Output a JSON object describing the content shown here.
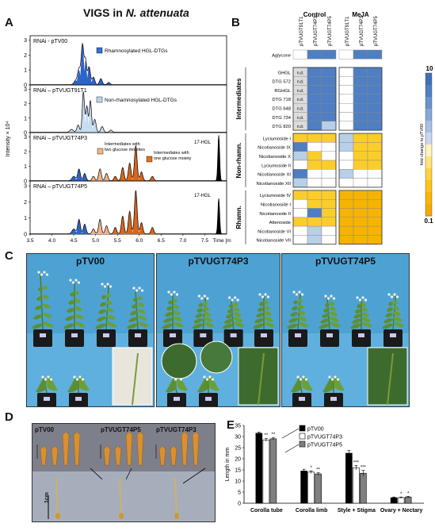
{
  "panels": {
    "A": "A",
    "B": "B",
    "C": "C",
    "D": "D",
    "E": "E"
  },
  "chromatograms": {
    "title_prefix": "VIGS in ",
    "title_species": "N. attenuata",
    "ylabel": "Intensity × 10⁴",
    "xlabel": "Time [min]",
    "x_ticks": [
      "3.5",
      "4.0",
      "4.5",
      "5.0",
      "5.5",
      "6.0",
      "6.5",
      "7.0",
      "7.5"
    ],
    "y_ticks": [
      "3",
      "2",
      "1",
      "0"
    ],
    "traces": [
      {
        "label": "RNAi - pTV00",
        "annotations": [
          {
            "text": "Rhamnosylated HGL-DTGs",
            "color": "#3b6fd4"
          }
        ]
      },
      {
        "label": "RNAi – pTVUGT91T1",
        "annotations": [
          {
            "text": "Non-rhamnosylated HGL-DTGs",
            "color": "#bcd6ee"
          }
        ]
      },
      {
        "label": "RNAi – pTVUGT74P3",
        "annotations": [
          {
            "text": "Intermediates with two glucose moieties",
            "color": "#f3b48a"
          },
          {
            "text": "Intermediates with one glucose moiety",
            "color": "#e0731f"
          },
          {
            "text": "17-HGL",
            "color": "#000000"
          }
        ]
      },
      {
        "label": "RNAi – pTVUGT74P5",
        "annotations": [
          {
            "text": "17-HGL",
            "color": "#000000"
          }
        ]
      }
    ]
  },
  "heatmap": {
    "groups": [
      "Control",
      "MeJA"
    ],
    "columns": [
      "pTVUGT91T1",
      "pTVUGT74P3",
      "pTVUGT74P5"
    ],
    "aglycone_row": {
      "name": "Aglycone",
      "values": [
        "white",
        "blue",
        "blue",
        "white",
        "blue",
        "blue"
      ]
    },
    "sections": [
      {
        "name": "Intermediates",
        "rows": [
          {
            "name": "GHGL",
            "values": [
              "nd",
              "blue",
              "blue",
              "white",
              "blue",
              "blue"
            ]
          },
          {
            "name": "DTG 572",
            "values": [
              "nd",
              "blue",
              "blue",
              "white",
              "blue",
              "blue"
            ]
          },
          {
            "name": "RGHGL",
            "values": [
              "nd",
              "blue",
              "blue",
              "white",
              "blue",
              "blue"
            ]
          },
          {
            "name": "DTG 718",
            "values": [
              "nd",
              "blue",
              "blue",
              "white",
              "blue",
              "blue"
            ]
          },
          {
            "name": "DTG 648",
            "values": [
              "nd",
              "blue",
              "blue",
              "white",
              "blue",
              "blue"
            ]
          },
          {
            "name": "DTG 734",
            "values": [
              "nd",
              "blue",
              "blue",
              "white",
              "blue",
              "blue"
            ]
          },
          {
            "name": "DTG 820",
            "values": [
              "nd",
              "blue",
              "light",
              "white",
              "blue",
              "blue"
            ]
          }
        ]
      },
      {
        "name": "Non-rhamn.",
        "rows": [
          {
            "name": "Lyciumoside I",
            "values": [
              "yellow",
              "yellow",
              "yellow",
              "light",
              "yellow",
              "yellow"
            ]
          },
          {
            "name": "Nicotianoside IX",
            "values": [
              "blue",
              "white",
              "white",
              "light",
              "yellow",
              "yellow"
            ]
          },
          {
            "name": "Nicotianoside X",
            "values": [
              "light",
              "yellow",
              "white",
              "white",
              "yellow",
              "yellow"
            ]
          },
          {
            "name": "Lyciumoside II",
            "values": [
              "white",
              "yellow",
              "yellow",
              "white",
              "yellow",
              "yellow"
            ]
          },
          {
            "name": "Nicotianoside XI",
            "values": [
              "blue",
              "white",
              "white",
              "light",
              "white",
              "white"
            ]
          },
          {
            "name": "Nicotianoside XII",
            "values": [
              "light",
              "white",
              "white",
              "white",
              "white",
              "white"
            ]
          }
        ]
      },
      {
        "name": "Rhamn.",
        "rows": [
          {
            "name": "Lyciumoside IV",
            "values": [
              "yellow",
              "yellow",
              "yellow",
              "orange",
              "orange",
              "orange"
            ]
          },
          {
            "name": "Nicotianoside I",
            "values": [
              "white",
              "yellow",
              "yellow",
              "orange",
              "orange",
              "orange"
            ]
          },
          {
            "name": "Nicotianoside II",
            "values": [
              "white",
              "blue",
              "yellow",
              "orange",
              "orange",
              "orange"
            ]
          },
          {
            "name": "Attenoside",
            "values": [
              "yellow",
              "yellow",
              "yellow",
              "orange",
              "orange",
              "orange"
            ]
          },
          {
            "name": "Nicotianoside VI",
            "values": [
              "white",
              "light",
              "white",
              "orange",
              "orange",
              "orange"
            ]
          },
          {
            "name": "Nicotianoside VII",
            "values": [
              "white",
              "light",
              "white",
              "orange",
              "orange",
              "orange"
            ]
          }
        ]
      }
    ],
    "nd_text": "n.d.",
    "scale_top": "10",
    "scale_bottom": "0.1",
    "scale_label": "fold change to pTV00",
    "colors": {
      "blue": "#4f7fc2",
      "light": "#b8cfe8",
      "white": "#ffffff",
      "yellow": "#fbcd2b",
      "orange": "#f6b400",
      "nd": "#dcdcdc"
    }
  },
  "photos_c": {
    "labels": [
      "pTV00",
      "pTVUGT74P3",
      "pTVUGT74P5"
    ],
    "bg_color": "#4ea2d3"
  },
  "flowers_d": {
    "labels": [
      "pTV00",
      "pTVUGT74P5",
      "pTVUGT74P3"
    ],
    "scale_text": "1cm"
  },
  "chart_data": {
    "type": "bar",
    "categories": [
      "Corolla tube",
      "Corolla limb",
      "Style + Stigma",
      "Ovary + Nectary"
    ],
    "series": [
      {
        "name": "pTV00",
        "values": [
          31.5,
          14.5,
          22.5,
          2.5
        ],
        "color": "#000000"
      },
      {
        "name": "pTVUGT74P3",
        "values": [
          28.5,
          14.0,
          16.0,
          2.5
        ],
        "color": "#ffffff"
      },
      {
        "name": "pTVUGT74P5",
        "values": [
          29.0,
          13.2,
          13.5,
          2.8
        ],
        "color": "#808080"
      }
    ],
    "errors": [
      [
        0.5,
        0.8,
        1.2,
        0.3
      ],
      [
        0.7,
        0.6,
        1.0,
        0.3
      ],
      [
        0.6,
        0.5,
        1.3,
        0.3
      ]
    ],
    "sig_marks": [
      [
        "",
        "",
        "",
        ""
      ],
      [
        "**",
        "*",
        "***",
        "*"
      ],
      [
        "**",
        "**",
        "***",
        "*"
      ]
    ],
    "ylabel": "Length in mm",
    "ylim": [
      0,
      35
    ],
    "yticks": [
      "0",
      "5",
      "10",
      "15",
      "20",
      "25",
      "30",
      "35"
    ]
  }
}
